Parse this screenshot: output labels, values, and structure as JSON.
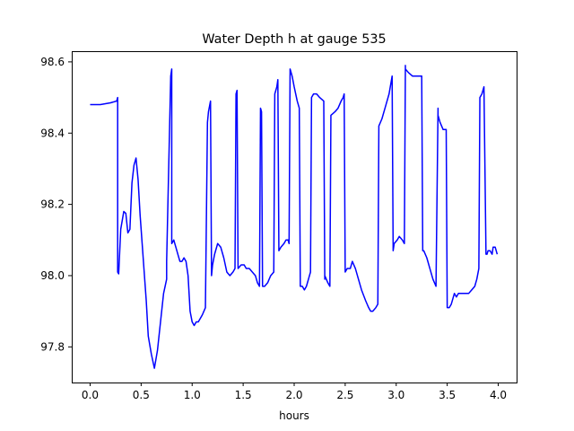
{
  "chart_data": {
    "type": "line",
    "title": "Water Depth h at gauge 535",
    "xlabel": "hours",
    "ylabel": "",
    "xlim": [
      -0.18,
      4.18
    ],
    "ylim": [
      97.7,
      98.63
    ],
    "xticks": [
      {
        "value": 0.0,
        "label": "0.0"
      },
      {
        "value": 0.5,
        "label": "0.5"
      },
      {
        "value": 1.0,
        "label": "1.0"
      },
      {
        "value": 1.5,
        "label": "1.5"
      },
      {
        "value": 2.0,
        "label": "2.0"
      },
      {
        "value": 2.5,
        "label": "2.5"
      },
      {
        "value": 3.0,
        "label": "3.0"
      },
      {
        "value": 3.5,
        "label": "3.5"
      },
      {
        "value": 4.0,
        "label": "4.0"
      }
    ],
    "yticks": [
      {
        "value": 97.8,
        "label": "97.8"
      },
      {
        "value": 98.0,
        "label": "98.0"
      },
      {
        "value": 98.2,
        "label": "98.2"
      },
      {
        "value": 98.4,
        "label": "98.4"
      },
      {
        "value": 98.6,
        "label": "98.6"
      }
    ],
    "grid": false,
    "legend": "none",
    "series": [
      {
        "color": "#0000ff",
        "x": [
          0.0,
          0.1,
          0.2,
          0.26,
          0.27,
          0.27,
          0.28,
          0.3,
          0.33,
          0.35,
          0.37,
          0.39,
          0.41,
          0.43,
          0.45,
          0.47,
          0.49,
          0.51,
          0.53,
          0.55,
          0.57,
          0.6,
          0.63,
          0.66,
          0.69,
          0.72,
          0.75,
          0.75,
          0.79,
          0.8,
          0.8,
          0.82,
          0.84,
          0.86,
          0.88,
          0.9,
          0.92,
          0.94,
          0.96,
          0.98,
          1.0,
          1.02,
          1.04,
          1.06,
          1.08,
          1.1,
          1.13,
          1.15,
          1.16,
          1.18,
          1.19,
          1.2,
          1.22,
          1.25,
          1.28,
          1.31,
          1.34,
          1.37,
          1.4,
          1.42,
          1.43,
          1.44,
          1.45,
          1.48,
          1.51,
          1.53,
          1.56,
          1.59,
          1.62,
          1.64,
          1.66,
          1.67,
          1.68,
          1.69,
          1.71,
          1.74,
          1.77,
          1.8,
          1.81,
          1.83,
          1.84,
          1.85,
          1.87,
          1.9,
          1.92,
          1.94,
          1.95,
          1.96,
          1.98,
          2.0,
          2.03,
          2.05,
          2.06,
          2.08,
          2.1,
          2.12,
          2.14,
          2.15,
          2.16,
          2.17,
          2.19,
          2.22,
          2.25,
          2.29,
          2.3,
          2.3,
          2.33,
          2.35,
          2.36,
          2.4,
          2.43,
          2.46,
          2.48,
          2.49,
          2.5,
          2.52,
          2.55,
          2.57,
          2.6,
          2.63,
          2.66,
          2.7,
          2.73,
          2.75,
          2.77,
          2.8,
          2.82,
          2.83,
          2.86,
          2.9,
          2.93,
          2.96,
          2.97,
          2.98,
          3.01,
          3.03,
          3.06,
          3.08,
          3.09,
          3.09,
          3.12,
          3.16,
          3.2,
          3.24,
          3.25,
          3.26,
          3.27,
          3.3,
          3.33,
          3.36,
          3.39,
          3.41,
          3.41,
          3.43,
          3.46,
          3.49,
          3.5,
          3.52,
          3.54,
          3.57,
          3.59,
          3.61,
          3.64,
          3.68,
          3.71,
          3.74,
          3.77,
          3.79,
          3.81,
          3.82,
          3.84,
          3.86,
          3.88,
          3.89,
          3.9,
          3.92,
          3.94,
          3.95,
          3.97,
          3.99
        ],
        "y": [
          98.48,
          98.48,
          98.485,
          98.49,
          98.5,
          98.01,
          98.005,
          98.13,
          98.18,
          98.175,
          98.12,
          98.13,
          98.26,
          98.31,
          98.33,
          98.27,
          98.17,
          98.09,
          98.01,
          97.93,
          97.83,
          97.78,
          97.74,
          97.79,
          97.87,
          97.95,
          97.99,
          98.04,
          98.56,
          98.58,
          98.09,
          98.1,
          98.08,
          98.06,
          98.04,
          98.04,
          98.05,
          98.04,
          98.0,
          97.9,
          97.87,
          97.86,
          97.87,
          97.87,
          97.88,
          97.89,
          97.91,
          98.43,
          98.46,
          98.49,
          98.0,
          98.03,
          98.06,
          98.09,
          98.08,
          98.05,
          98.01,
          98.0,
          98.01,
          98.02,
          98.51,
          98.52,
          98.02,
          98.03,
          98.03,
          98.02,
          98.02,
          98.01,
          98.0,
          97.98,
          97.97,
          98.47,
          98.46,
          97.97,
          97.97,
          97.98,
          98.0,
          98.01,
          98.51,
          98.53,
          98.55,
          98.07,
          98.08,
          98.09,
          98.1,
          98.1,
          98.09,
          98.58,
          98.56,
          98.53,
          98.49,
          98.47,
          97.97,
          97.97,
          97.96,
          97.97,
          97.99,
          98.0,
          98.01,
          98.5,
          98.51,
          98.51,
          98.5,
          98.49,
          97.99,
          98.0,
          97.98,
          97.97,
          98.45,
          98.46,
          98.47,
          98.49,
          98.5,
          98.51,
          98.01,
          98.02,
          98.02,
          98.04,
          98.02,
          97.99,
          97.96,
          97.93,
          97.91,
          97.9,
          97.9,
          97.91,
          97.92,
          98.42,
          98.44,
          98.48,
          98.51,
          98.56,
          98.07,
          98.09,
          98.1,
          98.11,
          98.1,
          98.09,
          98.59,
          98.58,
          98.57,
          98.56,
          98.56,
          98.56,
          98.56,
          98.07,
          98.07,
          98.05,
          98.02,
          97.99,
          97.97,
          98.47,
          98.45,
          98.43,
          98.41,
          98.41,
          97.91,
          97.91,
          97.92,
          97.95,
          97.94,
          97.95,
          97.95,
          97.95,
          97.95,
          97.96,
          97.97,
          97.99,
          98.02,
          98.5,
          98.51,
          98.53,
          98.06,
          98.06,
          98.07,
          98.07,
          98.06,
          98.08,
          98.08,
          98.06
        ]
      }
    ]
  }
}
